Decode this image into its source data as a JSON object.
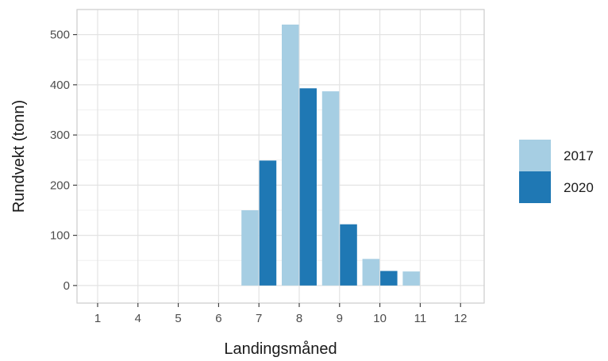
{
  "chart_data": {
    "type": "bar",
    "title": "",
    "xlabel": "Landingsmåned",
    "ylabel": "Rundvekt (tonn)",
    "categories": [
      "1",
      "4",
      "5",
      "6",
      "7",
      "8",
      "9",
      "10",
      "11",
      "12"
    ],
    "series": [
      {
        "name": "2017",
        "color": "#a6cee3",
        "values": [
          0,
          0,
          0,
          0,
          150,
          520,
          387,
          53,
          28,
          0
        ]
      },
      {
        "name": "2020",
        "color": "#1f78b4",
        "values": [
          0,
          0,
          0,
          0,
          249,
          393,
          122,
          29,
          0,
          0
        ]
      }
    ],
    "yticks": [
      0,
      100,
      200,
      300,
      400,
      500
    ],
    "ylim": [
      -35,
      550
    ],
    "grid": true,
    "legend": "right"
  }
}
